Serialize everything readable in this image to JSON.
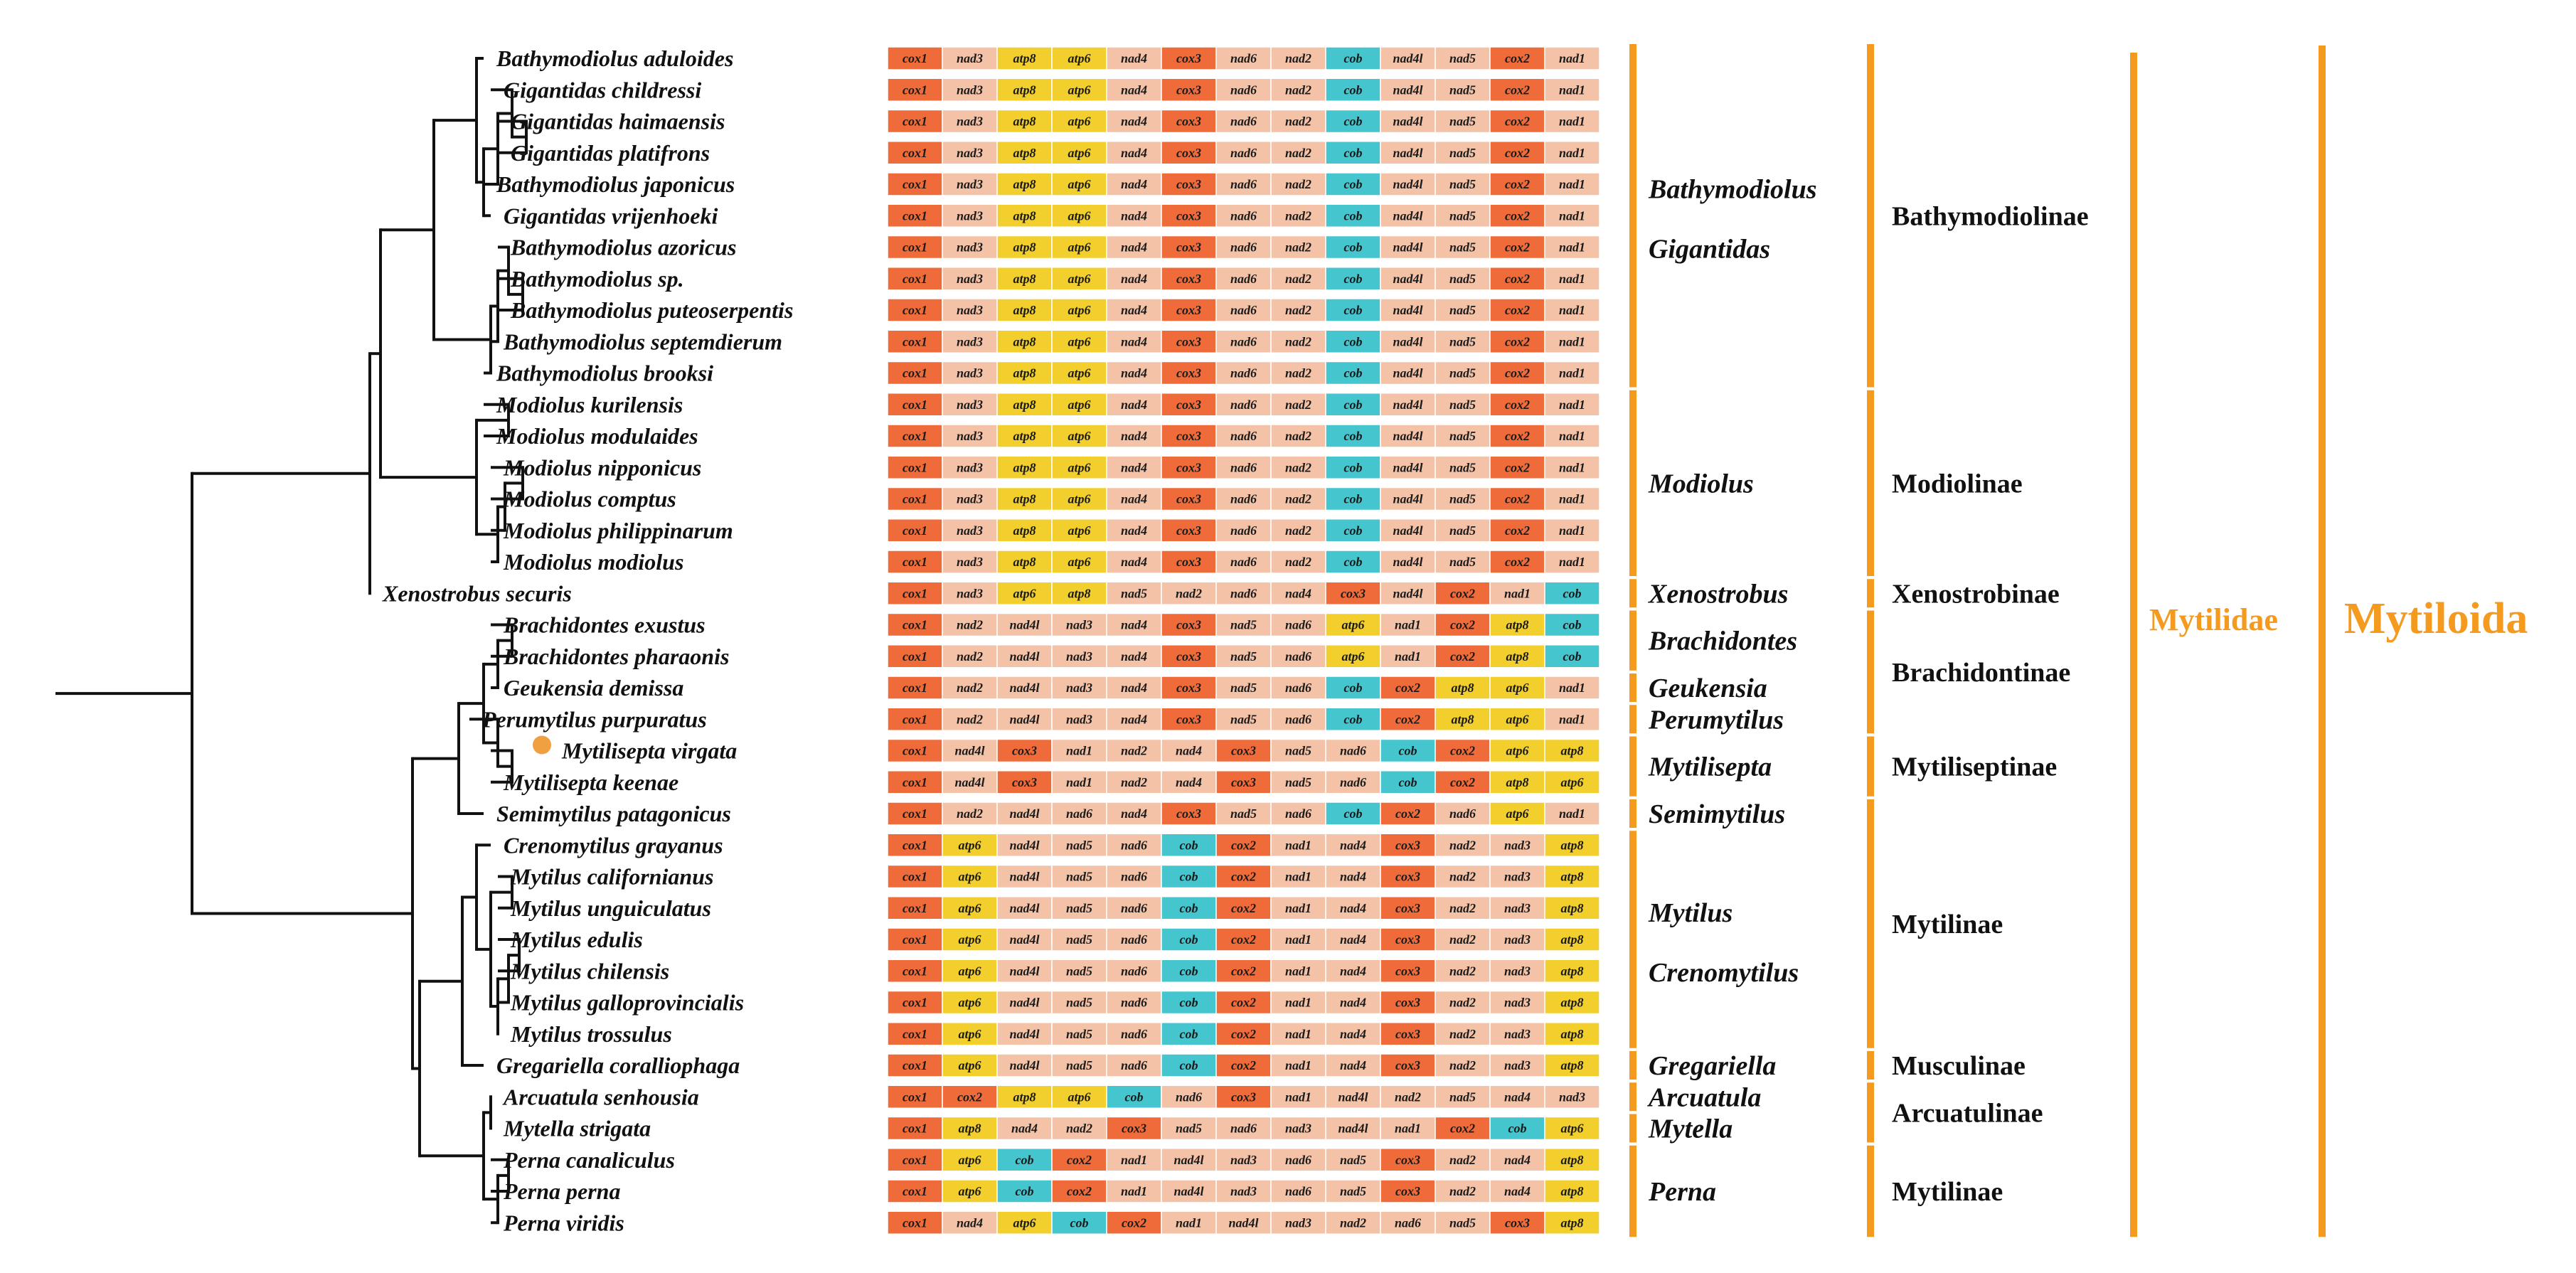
{
  "colors": {
    "cox": "#ef6b3a",
    "nad": "#f4c2a6",
    "atp": "#f2cf2c",
    "cob": "#45c6cf",
    "bar": "#f39a1f",
    "marker": "#f0a040",
    "tree": "#111111"
  },
  "species": [
    {
      "name": "Bathymodiolus aduloides",
      "genes": [
        "cox1",
        "nad3",
        "atp8",
        "atp6",
        "nad4",
        "cox3",
        "nad6",
        "nad2",
        "cob",
        "nad4l",
        "nad5",
        "cox2",
        "nad1"
      ]
    },
    {
      "name": "Gigantidas childressi",
      "genes": [
        "cox1",
        "nad3",
        "atp8",
        "atp6",
        "nad4",
        "cox3",
        "nad6",
        "nad2",
        "cob",
        "nad4l",
        "nad5",
        "cox2",
        "nad1"
      ]
    },
    {
      "name": "Gigantidas haimaensis",
      "genes": [
        "cox1",
        "nad3",
        "atp8",
        "atp6",
        "nad4",
        "cox3",
        "nad6",
        "nad2",
        "cob",
        "nad4l",
        "nad5",
        "cox2",
        "nad1"
      ]
    },
    {
      "name": "Gigantidas platifrons",
      "genes": [
        "cox1",
        "nad3",
        "atp8",
        "atp6",
        "nad4",
        "cox3",
        "nad6",
        "nad2",
        "cob",
        "nad4l",
        "nad5",
        "cox2",
        "nad1"
      ]
    },
    {
      "name": "Bathymodiolus japonicus",
      "genes": [
        "cox1",
        "nad3",
        "atp8",
        "atp6",
        "nad4",
        "cox3",
        "nad6",
        "nad2",
        "cob",
        "nad4l",
        "nad5",
        "cox2",
        "nad1"
      ]
    },
    {
      "name": "Gigantidas vrijenhoeki",
      "genes": [
        "cox1",
        "nad3",
        "atp8",
        "atp6",
        "nad4",
        "cox3",
        "nad6",
        "nad2",
        "cob",
        "nad4l",
        "nad5",
        "cox2",
        "nad1"
      ]
    },
    {
      "name": "Bathymodiolus azoricus",
      "genes": [
        "cox1",
        "nad3",
        "atp8",
        "atp6",
        "nad4",
        "cox3",
        "nad6",
        "nad2",
        "cob",
        "nad4l",
        "nad5",
        "cox2",
        "nad1"
      ]
    },
    {
      "name": "Bathymodiolus sp.",
      "genes": [
        "cox1",
        "nad3",
        "atp8",
        "atp6",
        "nad4",
        "cox3",
        "nad6",
        "nad2",
        "cob",
        "nad4l",
        "nad5",
        "cox2",
        "nad1"
      ]
    },
    {
      "name": "Bathymodiolus puteoserpentis",
      "genes": [
        "cox1",
        "nad3",
        "atp8",
        "atp6",
        "nad4",
        "cox3",
        "nad6",
        "nad2",
        "cob",
        "nad4l",
        "nad5",
        "cox2",
        "nad1"
      ]
    },
    {
      "name": "Bathymodiolus septemdierum",
      "genes": [
        "cox1",
        "nad3",
        "atp8",
        "atp6",
        "nad4",
        "cox3",
        "nad6",
        "nad2",
        "cob",
        "nad4l",
        "nad5",
        "cox2",
        "nad1"
      ]
    },
    {
      "name": "Bathymodiolus brooksi",
      "genes": [
        "cox1",
        "nad3",
        "atp8",
        "atp6",
        "nad4",
        "cox3",
        "nad6",
        "nad2",
        "cob",
        "nad4l",
        "nad5",
        "cox2",
        "nad1"
      ]
    },
    {
      "name": "Modiolus kurilensis",
      "genes": [
        "cox1",
        "nad3",
        "atp8",
        "atp6",
        "nad4",
        "cox3",
        "nad6",
        "nad2",
        "cob",
        "nad4l",
        "nad5",
        "cox2",
        "nad1"
      ]
    },
    {
      "name": "Modiolus modulaides",
      "genes": [
        "cox1",
        "nad3",
        "atp8",
        "atp6",
        "nad4",
        "cox3",
        "nad6",
        "nad2",
        "cob",
        "nad4l",
        "nad5",
        "cox2",
        "nad1"
      ]
    },
    {
      "name": "Modiolus nipponicus",
      "genes": [
        "cox1",
        "nad3",
        "atp8",
        "atp6",
        "nad4",
        "cox3",
        "nad6",
        "nad2",
        "cob",
        "nad4l",
        "nad5",
        "cox2",
        "nad1"
      ]
    },
    {
      "name": "Modiolus comptus",
      "genes": [
        "cox1",
        "nad3",
        "atp8",
        "atp6",
        "nad4",
        "cox3",
        "nad6",
        "nad2",
        "cob",
        "nad4l",
        "nad5",
        "cox2",
        "nad1"
      ]
    },
    {
      "name": "Modiolus philippinarum",
      "genes": [
        "cox1",
        "nad3",
        "atp8",
        "atp6",
        "nad4",
        "cox3",
        "nad6",
        "nad2",
        "cob",
        "nad4l",
        "nad5",
        "cox2",
        "nad1"
      ]
    },
    {
      "name": "Modiolus modiolus",
      "genes": [
        "cox1",
        "nad3",
        "atp8",
        "atp6",
        "nad4",
        "cox3",
        "nad6",
        "nad2",
        "cob",
        "nad4l",
        "nad5",
        "cox2",
        "nad1"
      ]
    },
    {
      "name": "Xenostrobus securis",
      "genes": [
        "cox1",
        "nad3",
        "atp6",
        "atp8",
        "nad5",
        "nad2",
        "nad6",
        "nad4",
        "cox3",
        "nad4l",
        "cox2",
        "nad1",
        "cob"
      ]
    },
    {
      "name": "Brachidontes exustus",
      "genes": [
        "cox1",
        "nad2",
        "nad4l",
        "nad3",
        "nad4",
        "cox3",
        "nad5",
        "nad6",
        "atp6",
        "nad1",
        "cox2",
        "atp8",
        "cob"
      ]
    },
    {
      "name": "Brachidontes pharaonis",
      "genes": [
        "cox1",
        "nad2",
        "nad4l",
        "nad3",
        "nad4",
        "cox3",
        "nad5",
        "nad6",
        "atp6",
        "nad1",
        "cox2",
        "atp8",
        "cob"
      ]
    },
    {
      "name": "Geukensia demissa",
      "genes": [
        "cox1",
        "nad2",
        "nad4l",
        "nad3",
        "nad4",
        "cox3",
        "nad5",
        "nad6",
        "cob",
        "cox2",
        "atp8",
        "atp6",
        "nad1"
      ]
    },
    {
      "name": "Perumytilus purpuratus",
      "genes": [
        "cox1",
        "nad2",
        "nad4l",
        "nad3",
        "nad4",
        "cox3",
        "nad5",
        "nad6",
        "cob",
        "cox2",
        "atp8",
        "atp6",
        "nad1"
      ]
    },
    {
      "name": "Mytilisepta virgata",
      "marker": true,
      "genes": [
        "cox1",
        "nad4l",
        "cox3",
        "nad1",
        "nad2",
        "nad4",
        "cox3",
        "nad5",
        "nad6",
        "cob",
        "cox2",
        "atp6",
        "atp8"
      ]
    },
    {
      "name": "Mytilisepta keenae",
      "genes": [
        "cox1",
        "nad4l",
        "cox3",
        "nad1",
        "nad2",
        "nad4",
        "cox3",
        "nad5",
        "nad6",
        "cob",
        "cox2",
        "atp8",
        "atp6"
      ]
    },
    {
      "name": "Semimytilus patagonicus",
      "genes": [
        "cox1",
        "nad2",
        "nad4l",
        "nad6",
        "nad4",
        "cox3",
        "nad5",
        "nad6",
        "cob",
        "cox2",
        "nad6",
        "atp6",
        "nad1"
      ]
    },
    {
      "name": "Crenomytilus grayanus",
      "genes": [
        "cox1",
        "atp6",
        "nad4l",
        "nad5",
        "nad6",
        "cob",
        "cox2",
        "nad1",
        "nad4",
        "cox3",
        "nad2",
        "nad3",
        "atp8"
      ]
    },
    {
      "name": "Mytilus californianus",
      "genes": [
        "cox1",
        "atp6",
        "nad4l",
        "nad5",
        "nad6",
        "cob",
        "cox2",
        "nad1",
        "nad4",
        "cox3",
        "nad2",
        "nad3",
        "atp8"
      ]
    },
    {
      "name": "Mytilus unguiculatus",
      "genes": [
        "cox1",
        "atp6",
        "nad4l",
        "nad5",
        "nad6",
        "cob",
        "cox2",
        "nad1",
        "nad4",
        "cox3",
        "nad2",
        "nad3",
        "atp8"
      ]
    },
    {
      "name": "Mytilus edulis",
      "genes": [
        "cox1",
        "atp6",
        "nad4l",
        "nad5",
        "nad6",
        "cob",
        "cox2",
        "nad1",
        "nad4",
        "cox3",
        "nad2",
        "nad3",
        "atp8"
      ]
    },
    {
      "name": "Mytilus chilensis",
      "genes": [
        "cox1",
        "atp6",
        "nad4l",
        "nad5",
        "nad6",
        "cob",
        "cox2",
        "nad1",
        "nad4",
        "cox3",
        "nad2",
        "nad3",
        "atp8"
      ]
    },
    {
      "name": "Mytilus galloprovincialis",
      "genes": [
        "cox1",
        "atp6",
        "nad4l",
        "nad5",
        "nad6",
        "cob",
        "cox2",
        "nad1",
        "nad4",
        "cox3",
        "nad2",
        "nad3",
        "atp8"
      ]
    },
    {
      "name": "Mytilus trossulus",
      "genes": [
        "cox1",
        "atp6",
        "nad4l",
        "nad5",
        "nad6",
        "cob",
        "cox2",
        "nad1",
        "nad4",
        "cox3",
        "nad2",
        "nad3",
        "atp8"
      ]
    },
    {
      "name": "Gregariella coralliophaga",
      "genes": [
        "cox1",
        "atp6",
        "nad4l",
        "nad5",
        "nad6",
        "cob",
        "cox2",
        "nad1",
        "nad4",
        "cox3",
        "nad2",
        "nad3",
        "atp8"
      ]
    },
    {
      "name": "Arcuatula senhousia",
      "genes": [
        "cox1",
        "cox2",
        "atp8",
        "atp6",
        "cob",
        "nad6",
        "cox3",
        "nad1",
        "nad4l",
        "nad2",
        "nad5",
        "nad4",
        "nad3"
      ]
    },
    {
      "name": "Mytella strigata",
      "genes": [
        "cox1",
        "atp8",
        "nad4",
        "nad2",
        "cox3",
        "nad5",
        "nad6",
        "nad3",
        "nad4l",
        "nad1",
        "cox2",
        "cob",
        "atp6"
      ]
    },
    {
      "name": "Perna canaliculus",
      "genes": [
        "cox1",
        "atp6",
        "cob",
        "cox2",
        "nad1",
        "nad4l",
        "nad3",
        "nad6",
        "nad5",
        "cox3",
        "nad2",
        "nad4",
        "atp8"
      ]
    },
    {
      "name": "Perna perna",
      "genes": [
        "cox1",
        "atp6",
        "cob",
        "cox2",
        "nad1",
        "nad4l",
        "nad3",
        "nad6",
        "nad5",
        "cox3",
        "nad2",
        "nad4",
        "atp8"
      ]
    },
    {
      "name": "Perna viridis",
      "genes": [
        "cox1",
        "nad4",
        "atp6",
        "cob",
        "cox2",
        "nad1",
        "nad4l",
        "nad3",
        "nad2",
        "nad6",
        "nad5",
        "cox3",
        "atp8"
      ]
    }
  ],
  "genus_groups": [
    {
      "labels": [
        "Bathymodiolus",
        "Gigantidas"
      ],
      "first": 0,
      "last": 10
    },
    {
      "labels": [
        "Modiolus"
      ],
      "first": 11,
      "last": 16
    },
    {
      "labels": [
        "Xenostrobus"
      ],
      "first": 17,
      "last": 17
    },
    {
      "labels": [
        "Brachidontes"
      ],
      "first": 18,
      "last": 19
    },
    {
      "labels": [
        "Geukensia"
      ],
      "first": 20,
      "last": 20
    },
    {
      "labels": [
        "Perumytilus"
      ],
      "first": 21,
      "last": 21
    },
    {
      "labels": [
        "Mytilisepta"
      ],
      "first": 22,
      "last": 23
    },
    {
      "labels": [
        "Semimytilus"
      ],
      "first": 24,
      "last": 24
    },
    {
      "labels": [
        "Mytilus",
        "Crenomytilus"
      ],
      "first": 25,
      "last": 31
    },
    {
      "labels": [
        "Gregariella"
      ],
      "first": 32,
      "last": 32
    },
    {
      "labels": [
        "Arcuatula"
      ],
      "first": 33,
      "last": 33
    },
    {
      "labels": [
        "Mytella"
      ],
      "first": 34,
      "last": 34
    },
    {
      "labels": [
        "Perna"
      ],
      "first": 35,
      "last": 37
    }
  ],
  "subfamily_groups": [
    {
      "label": "Bathymodiolinae",
      "first": 0,
      "last": 10
    },
    {
      "label": "Modiolinae",
      "first": 11,
      "last": 16
    },
    {
      "label": "Xenostrobinae",
      "first": 17,
      "last": 17
    },
    {
      "label": "Brachidontinae",
      "first": 18,
      "last": 21
    },
    {
      "label": "Mytiliseptinae",
      "first": 22,
      "last": 23
    },
    {
      "label": "Mytilinae",
      "first": 24,
      "last": 31
    },
    {
      "label": "Musculinae",
      "first": 32,
      "last": 32
    },
    {
      "label": "Arcuatulinae",
      "first": 33,
      "last": 34
    },
    {
      "label": "Mytilinae",
      "first": 35,
      "last": 37
    }
  ],
  "family": {
    "label": "Mytilidae"
  },
  "order": {
    "label": "Mytiloida"
  }
}
